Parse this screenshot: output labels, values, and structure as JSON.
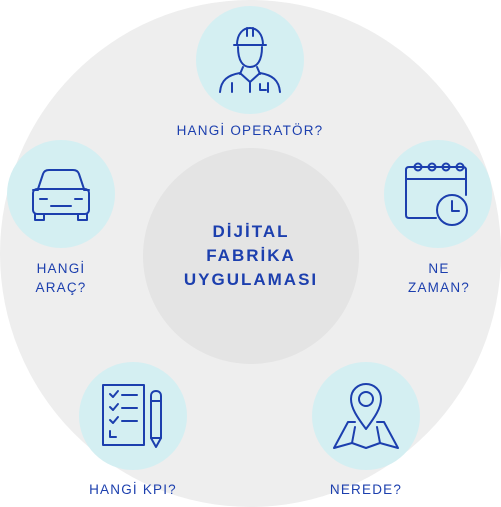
{
  "hub": {
    "lines": [
      "DİJİTAL",
      "FABRİKA",
      "UYGULAMASI"
    ]
  },
  "nodes": {
    "operator": {
      "icon": "worker-icon",
      "label": "HANGİ OPERATÖR?"
    },
    "vehicle": {
      "icon": "car-icon",
      "label_lines": [
        "HANGİ",
        "ARAÇ?"
      ]
    },
    "time": {
      "icon": "calendar-clock-icon",
      "label_lines": [
        "NE",
        "ZAMAN?"
      ]
    },
    "kpi": {
      "icon": "checklist-icon",
      "label": "HANGİ KPI?"
    },
    "location": {
      "icon": "map-pin-icon",
      "label": "NEREDE?"
    }
  },
  "colors": {
    "primary": "#1c3fae",
    "node_fill": "#d4eff2",
    "ring": "#eeeeee",
    "hub": "#e4e4e4"
  }
}
